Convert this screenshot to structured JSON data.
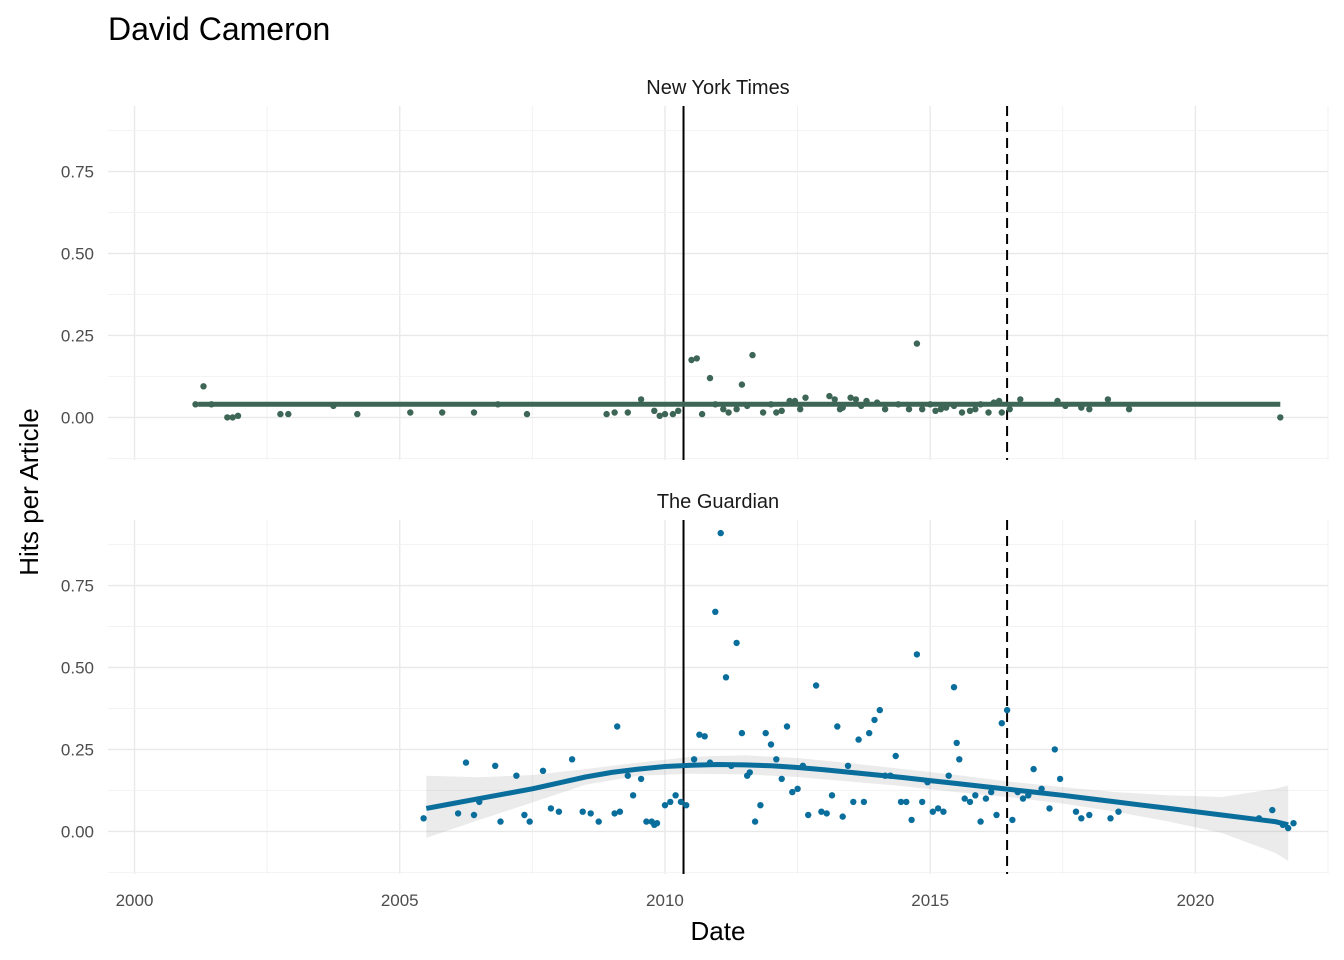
{
  "chart_data": {
    "type": "scatter",
    "title": "David Cameron",
    "xlabel": "Date",
    "ylabel": "Hits per Article",
    "x_ticks": [
      "2000",
      "2005",
      "2010",
      "2015",
      "2020"
    ],
    "y_ticks": [
      "0.00",
      "0.25",
      "0.50",
      "0.75"
    ],
    "xlim": [
      1999.5,
      2022.5
    ],
    "ylim": [
      -0.13,
      0.95
    ],
    "grid": true,
    "vertical_lines": [
      {
        "x": 2010.35,
        "style": "solid"
      },
      {
        "x": 2016.45,
        "style": "dashed"
      }
    ],
    "panels": [
      {
        "title": "New York Times",
        "color": "#3d6657",
        "trend": {
          "x": [
            2001.2,
            2021.6
          ],
          "y": [
            0.04,
            0.04
          ]
        },
        "band": null,
        "points": [
          [
            2001.15,
            0.04
          ],
          [
            2001.3,
            0.095
          ],
          [
            2001.45,
            0.04
          ],
          [
            2001.75,
            0.0
          ],
          [
            2001.85,
            0.0
          ],
          [
            2001.95,
            0.005
          ],
          [
            2002.75,
            0.01
          ],
          [
            2002.9,
            0.01
          ],
          [
            2003.75,
            0.035
          ],
          [
            2004.2,
            0.01
          ],
          [
            2005.2,
            0.015
          ],
          [
            2005.8,
            0.015
          ],
          [
            2006.4,
            0.015
          ],
          [
            2006.85,
            0.04
          ],
          [
            2007.4,
            0.01
          ],
          [
            2008.9,
            0.01
          ],
          [
            2009.05,
            0.015
          ],
          [
            2009.3,
            0.015
          ],
          [
            2009.55,
            0.055
          ],
          [
            2009.8,
            0.02
          ],
          [
            2009.9,
            0.005
          ],
          [
            2010.0,
            0.01
          ],
          [
            2010.15,
            0.01
          ],
          [
            2010.25,
            0.02
          ],
          [
            2010.5,
            0.175
          ],
          [
            2010.6,
            0.18
          ],
          [
            2010.7,
            0.01
          ],
          [
            2010.85,
            0.12
          ],
          [
            2010.95,
            0.04
          ],
          [
            2011.1,
            0.025
          ],
          [
            2011.2,
            0.015
          ],
          [
            2011.35,
            0.025
          ],
          [
            2011.45,
            0.1
          ],
          [
            2011.55,
            0.035
          ],
          [
            2011.65,
            0.19
          ],
          [
            2011.85,
            0.015
          ],
          [
            2012.0,
            0.04
          ],
          [
            2012.1,
            0.015
          ],
          [
            2012.2,
            0.02
          ],
          [
            2012.35,
            0.05
          ],
          [
            2012.45,
            0.05
          ],
          [
            2012.55,
            0.025
          ],
          [
            2012.65,
            0.06
          ],
          [
            2013.1,
            0.065
          ],
          [
            2013.2,
            0.055
          ],
          [
            2013.3,
            0.025
          ],
          [
            2013.35,
            0.03
          ],
          [
            2013.5,
            0.06
          ],
          [
            2013.6,
            0.055
          ],
          [
            2013.7,
            0.035
          ],
          [
            2013.8,
            0.05
          ],
          [
            2014.0,
            0.045
          ],
          [
            2014.15,
            0.025
          ],
          [
            2014.4,
            0.04
          ],
          [
            2014.6,
            0.025
          ],
          [
            2014.75,
            0.225
          ],
          [
            2014.85,
            0.025
          ],
          [
            2015.0,
            0.04
          ],
          [
            2015.1,
            0.02
          ],
          [
            2015.2,
            0.025
          ],
          [
            2015.3,
            0.03
          ],
          [
            2015.45,
            0.035
          ],
          [
            2015.6,
            0.015
          ],
          [
            2015.75,
            0.02
          ],
          [
            2015.85,
            0.025
          ],
          [
            2015.95,
            0.04
          ],
          [
            2016.1,
            0.015
          ],
          [
            2016.2,
            0.045
          ],
          [
            2016.3,
            0.05
          ],
          [
            2016.35,
            0.015
          ],
          [
            2016.5,
            0.025
          ],
          [
            2016.7,
            0.055
          ],
          [
            2017.4,
            0.05
          ],
          [
            2017.55,
            0.035
          ],
          [
            2017.85,
            0.03
          ],
          [
            2018.0,
            0.025
          ],
          [
            2018.35,
            0.055
          ],
          [
            2018.75,
            0.025
          ],
          [
            2021.6,
            0.0
          ]
        ]
      },
      {
        "title": "The Guardian",
        "color": "#0a6e9c",
        "trend": {
          "x": [
            2005.5,
            2006,
            2006.5,
            2007,
            2007.5,
            2008,
            2008.5,
            2009,
            2009.5,
            2010,
            2010.5,
            2011,
            2011.5,
            2012,
            2012.5,
            2013,
            2013.5,
            2014,
            2014.5,
            2015,
            2015.5,
            2016,
            2016.5,
            2017,
            2017.5,
            2018,
            2018.5,
            2019,
            2019.5,
            2020,
            2020.5,
            2021,
            2021.5,
            2021.75
          ],
          "y": [
            0.07,
            0.085,
            0.1,
            0.115,
            0.13,
            0.148,
            0.166,
            0.18,
            0.19,
            0.198,
            0.202,
            0.204,
            0.203,
            0.2,
            0.195,
            0.188,
            0.18,
            0.172,
            0.164,
            0.155,
            0.146,
            0.137,
            0.128,
            0.119,
            0.11,
            0.1,
            0.09,
            0.08,
            0.07,
            0.06,
            0.05,
            0.04,
            0.03,
            0.02
          ]
        },
        "band": {
          "x": [
            2005.5,
            2006.5,
            2007.5,
            2008.5,
            2009.5,
            2010.5,
            2011.5,
            2012.5,
            2013.5,
            2014.5,
            2015.5,
            2016.5,
            2017.5,
            2018.5,
            2019.5,
            2020.5,
            2021.5,
            2021.75
          ],
          "upper": [
            0.17,
            0.165,
            0.172,
            0.19,
            0.21,
            0.228,
            0.232,
            0.224,
            0.208,
            0.19,
            0.172,
            0.152,
            0.135,
            0.12,
            0.11,
            0.105,
            0.13,
            0.14
          ],
          "lower": [
            -0.02,
            0.035,
            0.088,
            0.142,
            0.17,
            0.176,
            0.174,
            0.166,
            0.152,
            0.138,
            0.12,
            0.104,
            0.085,
            0.06,
            0.03,
            -0.005,
            -0.065,
            -0.09
          ]
        },
        "points": [
          [
            2005.45,
            0.04
          ],
          [
            2006.1,
            0.055
          ],
          [
            2006.25,
            0.21
          ],
          [
            2006.4,
            0.05
          ],
          [
            2006.5,
            0.09
          ],
          [
            2006.8,
            0.2
          ],
          [
            2006.9,
            0.03
          ],
          [
            2007.2,
            0.17
          ],
          [
            2007.35,
            0.05
          ],
          [
            2007.45,
            0.03
          ],
          [
            2007.7,
            0.185
          ],
          [
            2007.85,
            0.07
          ],
          [
            2008.0,
            0.06
          ],
          [
            2008.25,
            0.22
          ],
          [
            2008.45,
            0.06
          ],
          [
            2008.6,
            0.055
          ],
          [
            2008.75,
            0.03
          ],
          [
            2009.05,
            0.055
          ],
          [
            2009.1,
            0.32
          ],
          [
            2009.15,
            0.06
          ],
          [
            2009.3,
            0.17
          ],
          [
            2009.4,
            0.11
          ],
          [
            2009.55,
            0.16
          ],
          [
            2009.65,
            0.03
          ],
          [
            2009.75,
            0.03
          ],
          [
            2009.8,
            0.02
          ],
          [
            2009.85,
            0.025
          ],
          [
            2010.0,
            0.08
          ],
          [
            2010.1,
            0.09
          ],
          [
            2010.2,
            0.11
          ],
          [
            2010.3,
            0.09
          ],
          [
            2010.4,
            0.08
          ],
          [
            2010.55,
            0.22
          ],
          [
            2010.65,
            0.295
          ],
          [
            2010.75,
            0.29
          ],
          [
            2010.85,
            0.21
          ],
          [
            2010.95,
            0.67
          ],
          [
            2011.05,
            0.91
          ],
          [
            2011.15,
            0.47
          ],
          [
            2011.25,
            0.2
          ],
          [
            2011.35,
            0.575
          ],
          [
            2011.45,
            0.3
          ],
          [
            2011.55,
            0.17
          ],
          [
            2011.6,
            0.18
          ],
          [
            2011.7,
            0.03
          ],
          [
            2011.8,
            0.08
          ],
          [
            2011.9,
            0.3
          ],
          [
            2012.0,
            0.265
          ],
          [
            2012.1,
            0.22
          ],
          [
            2012.2,
            0.16
          ],
          [
            2012.3,
            0.32
          ],
          [
            2012.4,
            0.12
          ],
          [
            2012.5,
            0.13
          ],
          [
            2012.6,
            0.2
          ],
          [
            2012.7,
            0.05
          ],
          [
            2012.85,
            0.445
          ],
          [
            2012.95,
            0.06
          ],
          [
            2013.05,
            0.055
          ],
          [
            2013.15,
            0.11
          ],
          [
            2013.25,
            0.32
          ],
          [
            2013.35,
            0.045
          ],
          [
            2013.45,
            0.2
          ],
          [
            2013.55,
            0.09
          ],
          [
            2013.65,
            0.28
          ],
          [
            2013.75,
            0.09
          ],
          [
            2013.85,
            0.3
          ],
          [
            2013.95,
            0.34
          ],
          [
            2014.05,
            0.37
          ],
          [
            2014.15,
            0.17
          ],
          [
            2014.25,
            0.17
          ],
          [
            2014.35,
            0.23
          ],
          [
            2014.45,
            0.09
          ],
          [
            2014.55,
            0.09
          ],
          [
            2014.65,
            0.035
          ],
          [
            2014.75,
            0.54
          ],
          [
            2014.85,
            0.09
          ],
          [
            2014.95,
            0.15
          ],
          [
            2015.05,
            0.06
          ],
          [
            2015.15,
            0.07
          ],
          [
            2015.25,
            0.06
          ],
          [
            2015.35,
            0.17
          ],
          [
            2015.45,
            0.44
          ],
          [
            2015.5,
            0.27
          ],
          [
            2015.55,
            0.22
          ],
          [
            2015.65,
            0.1
          ],
          [
            2015.75,
            0.09
          ],
          [
            2015.85,
            0.11
          ],
          [
            2015.95,
            0.03
          ],
          [
            2016.05,
            0.1
          ],
          [
            2016.15,
            0.12
          ],
          [
            2016.25,
            0.05
          ],
          [
            2016.35,
            0.33
          ],
          [
            2016.45,
            0.37
          ],
          [
            2016.55,
            0.035
          ],
          [
            2016.65,
            0.12
          ],
          [
            2016.75,
            0.1
          ],
          [
            2016.85,
            0.11
          ],
          [
            2016.95,
            0.19
          ],
          [
            2017.1,
            0.13
          ],
          [
            2017.25,
            0.07
          ],
          [
            2017.35,
            0.25
          ],
          [
            2017.45,
            0.16
          ],
          [
            2017.75,
            0.06
          ],
          [
            2017.85,
            0.04
          ],
          [
            2018.0,
            0.05
          ],
          [
            2018.4,
            0.04
          ],
          [
            2018.55,
            0.06
          ],
          [
            2021.2,
            0.04
          ],
          [
            2021.45,
            0.065
          ],
          [
            2021.65,
            0.02
          ],
          [
            2021.75,
            0.01
          ],
          [
            2021.85,
            0.025
          ]
        ]
      }
    ]
  }
}
